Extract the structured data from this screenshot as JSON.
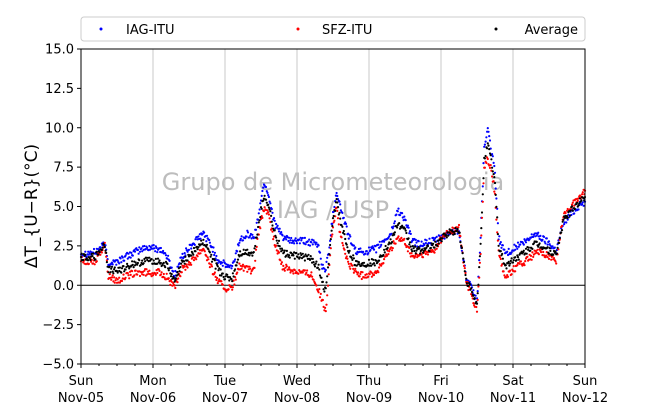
{
  "chart_data": {
    "type": "scatter",
    "title": "",
    "xlabel": "",
    "ylabel": "ΔT_{U−R}(°C)",
    "ylim": [
      -5.0,
      15.0
    ],
    "xlim": [
      0,
      7
    ],
    "yticks": [
      -5.0,
      -2.5,
      0.0,
      2.5,
      5.0,
      7.5,
      10.0,
      12.5,
      15.0
    ],
    "ytick_labels": [
      "−5.0",
      "−2.5",
      "0.0",
      "2.5",
      "5.0",
      "7.5",
      "10.0",
      "12.5",
      "15.0"
    ],
    "xticks": [
      {
        "day": "Sun",
        "date": "Nov-05",
        "x": 0
      },
      {
        "day": "Mon",
        "date": "Nov-06",
        "x": 1
      },
      {
        "day": "Tue",
        "date": "Nov-07",
        "x": 2
      },
      {
        "day": "Wed",
        "date": "Nov-08",
        "x": 3
      },
      {
        "day": "Thu",
        "date": "Nov-09",
        "x": 4
      },
      {
        "day": "Fri",
        "date": "Nov-10",
        "x": 5
      },
      {
        "day": "Sat",
        "date": "Nov-11",
        "x": 6
      },
      {
        "day": "Sun",
        "date": "Nov-12",
        "x": 7
      }
    ],
    "grid": "vertical",
    "zero_line": true,
    "legend_position": "top",
    "watermark": [
      "Grupo de Micrometeorologia",
      "IAG / USP"
    ],
    "series": [
      {
        "name": "IAG-ITU",
        "color": "#0000ff",
        "points": [
          [
            0,
            2.0
          ],
          [
            0.2,
            2.1
          ],
          [
            0.33,
            2.6
          ],
          [
            0.38,
            1.4
          ],
          [
            0.5,
            1.5
          ],
          [
            0.7,
            2.0
          ],
          [
            0.85,
            2.3
          ],
          [
            0.95,
            2.4
          ],
          [
            1.1,
            2.3
          ],
          [
            1.2,
            1.8
          ],
          [
            1.3,
            0.6
          ],
          [
            1.4,
            1.8
          ],
          [
            1.55,
            2.6
          ],
          [
            1.7,
            3.3
          ],
          [
            1.8,
            2.6
          ],
          [
            1.9,
            1.6
          ],
          [
            2.0,
            1.3
          ],
          [
            2.1,
            1.1
          ],
          [
            2.2,
            2.8
          ],
          [
            2.3,
            3.3
          ],
          [
            2.4,
            3.0
          ],
          [
            2.45,
            4.0
          ],
          [
            2.5,
            5.5
          ],
          [
            2.55,
            6.5
          ],
          [
            2.6,
            5.8
          ],
          [
            2.7,
            3.8
          ],
          [
            2.8,
            3.1
          ],
          [
            2.9,
            2.8
          ],
          [
            3.1,
            2.8
          ],
          [
            3.2,
            2.7
          ],
          [
            3.3,
            2.5
          ],
          [
            3.35,
            1.2
          ],
          [
            3.4,
            1.0
          ],
          [
            3.45,
            2.5
          ],
          [
            3.5,
            4.5
          ],
          [
            3.55,
            6.0
          ],
          [
            3.6,
            5.0
          ],
          [
            3.7,
            3.4
          ],
          [
            3.8,
            2.2
          ],
          [
            3.9,
            2.1
          ],
          [
            4.1,
            2.3
          ],
          [
            4.2,
            2.8
          ],
          [
            4.3,
            3.2
          ],
          [
            4.4,
            4.8
          ],
          [
            4.5,
            4.2
          ],
          [
            4.6,
            2.8
          ],
          [
            4.7,
            2.6
          ],
          [
            4.8,
            2.7
          ],
          [
            4.9,
            2.8
          ],
          [
            5.0,
            3.0
          ],
          [
            5.1,
            3.3
          ],
          [
            5.25,
            3.5
          ],
          [
            5.35,
            0.5
          ],
          [
            5.45,
            -0.5
          ],
          [
            5.5,
            -1.0
          ],
          [
            5.55,
            3.0
          ],
          [
            5.6,
            8.8
          ],
          [
            5.65,
            9.8
          ],
          [
            5.7,
            8.5
          ],
          [
            5.75,
            7.2
          ],
          [
            5.8,
            3.0
          ],
          [
            5.9,
            2.0
          ],
          [
            6.0,
            2.3
          ],
          [
            6.1,
            2.6
          ],
          [
            6.2,
            2.8
          ],
          [
            6.3,
            3.3
          ],
          [
            6.4,
            3.0
          ],
          [
            6.5,
            2.7
          ],
          [
            6.6,
            2.2
          ],
          [
            6.7,
            4.0
          ],
          [
            6.8,
            4.5
          ],
          [
            6.9,
            5.0
          ],
          [
            7.0,
            5.3
          ]
        ]
      },
      {
        "name": "SFZ-ITU",
        "color": "#ff0000",
        "points": [
          [
            0,
            1.6
          ],
          [
            0.2,
            1.5
          ],
          [
            0.33,
            2.6
          ],
          [
            0.38,
            0.6
          ],
          [
            0.5,
            0.3
          ],
          [
            0.7,
            0.7
          ],
          [
            0.85,
            0.8
          ],
          [
            0.95,
            0.8
          ],
          [
            1.1,
            0.8
          ],
          [
            1.2,
            0.5
          ],
          [
            1.3,
            -0.2
          ],
          [
            1.4,
            1.0
          ],
          [
            1.55,
            1.6
          ],
          [
            1.7,
            2.4
          ],
          [
            1.8,
            1.2
          ],
          [
            1.9,
            0.3
          ],
          [
            2.0,
            -0.2
          ],
          [
            2.1,
            -0.2
          ],
          [
            2.2,
            1.2
          ],
          [
            2.3,
            1.0
          ],
          [
            2.4,
            0.9
          ],
          [
            2.45,
            2.8
          ],
          [
            2.5,
            4.0
          ],
          [
            2.55,
            5.0
          ],
          [
            2.6,
            4.5
          ],
          [
            2.7,
            2.5
          ],
          [
            2.8,
            1.2
          ],
          [
            2.9,
            1.0
          ],
          [
            3.1,
            0.8
          ],
          [
            3.2,
            0.7
          ],
          [
            3.3,
            -0.3
          ],
          [
            3.35,
            -1.0
          ],
          [
            3.4,
            -1.8
          ],
          [
            3.45,
            1.5
          ],
          [
            3.5,
            3.8
          ],
          [
            3.55,
            5.0
          ],
          [
            3.6,
            3.2
          ],
          [
            3.7,
            1.5
          ],
          [
            3.8,
            0.9
          ],
          [
            3.9,
            0.6
          ],
          [
            4.1,
            0.8
          ],
          [
            4.2,
            1.5
          ],
          [
            4.3,
            2.3
          ],
          [
            4.4,
            3.0
          ],
          [
            4.5,
            2.7
          ],
          [
            4.6,
            1.8
          ],
          [
            4.7,
            1.9
          ],
          [
            4.8,
            2.0
          ],
          [
            4.9,
            2.2
          ],
          [
            5.0,
            2.9
          ],
          [
            5.1,
            3.4
          ],
          [
            5.25,
            3.6
          ],
          [
            5.35,
            0.3
          ],
          [
            5.45,
            -1.0
          ],
          [
            5.5,
            -1.6
          ],
          [
            5.55,
            2.0
          ],
          [
            5.6,
            7.5
          ],
          [
            5.65,
            8.0
          ],
          [
            5.7,
            7.3
          ],
          [
            5.75,
            5.8
          ],
          [
            5.8,
            2.0
          ],
          [
            5.9,
            0.5
          ],
          [
            6.0,
            1.0
          ],
          [
            6.1,
            1.3
          ],
          [
            6.2,
            1.6
          ],
          [
            6.3,
            2.0
          ],
          [
            6.4,
            2.1
          ],
          [
            6.5,
            1.8
          ],
          [
            6.6,
            1.6
          ],
          [
            6.7,
            4.3
          ],
          [
            6.8,
            5.0
          ],
          [
            6.9,
            5.5
          ],
          [
            7.0,
            6.0
          ]
        ]
      },
      {
        "name": "Average",
        "color": "#000000",
        "points": [
          [
            0,
            1.8
          ],
          [
            0.2,
            1.8
          ],
          [
            0.33,
            2.6
          ],
          [
            0.38,
            1.0
          ],
          [
            0.5,
            0.9
          ],
          [
            0.7,
            1.3
          ],
          [
            0.85,
            1.5
          ],
          [
            0.95,
            1.6
          ],
          [
            1.1,
            1.5
          ],
          [
            1.2,
            1.2
          ],
          [
            1.3,
            0.2
          ],
          [
            1.4,
            1.4
          ],
          [
            1.55,
            2.1
          ],
          [
            1.7,
            2.8
          ],
          [
            1.8,
            1.9
          ],
          [
            1.9,
            1.0
          ],
          [
            2.0,
            0.5
          ],
          [
            2.1,
            0.4
          ],
          [
            2.2,
            2.0
          ],
          [
            2.3,
            2.1
          ],
          [
            2.4,
            2.0
          ],
          [
            2.45,
            3.4
          ],
          [
            2.5,
            4.8
          ],
          [
            2.55,
            5.7
          ],
          [
            2.6,
            5.2
          ],
          [
            2.7,
            3.1
          ],
          [
            2.8,
            2.1
          ],
          [
            2.9,
            1.9
          ],
          [
            3.1,
            1.8
          ],
          [
            3.2,
            1.7
          ],
          [
            3.3,
            1.1
          ],
          [
            3.35,
            0.1
          ],
          [
            3.4,
            -0.4
          ],
          [
            3.45,
            2.0
          ],
          [
            3.5,
            4.1
          ],
          [
            3.55,
            5.5
          ],
          [
            3.6,
            4.1
          ],
          [
            3.7,
            2.4
          ],
          [
            3.8,
            1.5
          ],
          [
            3.9,
            1.3
          ],
          [
            4.1,
            1.5
          ],
          [
            4.2,
            2.1
          ],
          [
            4.3,
            2.7
          ],
          [
            4.4,
            3.9
          ],
          [
            4.5,
            3.4
          ],
          [
            4.6,
            2.3
          ],
          [
            4.7,
            2.2
          ],
          [
            4.8,
            2.3
          ],
          [
            4.9,
            2.5
          ],
          [
            5.0,
            2.9
          ],
          [
            5.1,
            3.3
          ],
          [
            5.25,
            3.5
          ],
          [
            5.35,
            0.4
          ],
          [
            5.45,
            -0.7
          ],
          [
            5.5,
            -1.3
          ],
          [
            5.55,
            2.5
          ],
          [
            5.6,
            8.1
          ],
          [
            5.65,
            8.9
          ],
          [
            5.7,
            7.9
          ],
          [
            5.75,
            6.5
          ],
          [
            5.8,
            2.5
          ],
          [
            5.9,
            1.2
          ],
          [
            6.0,
            1.6
          ],
          [
            6.1,
            1.9
          ],
          [
            6.2,
            2.2
          ],
          [
            6.3,
            2.6
          ],
          [
            6.4,
            2.5
          ],
          [
            6.5,
            2.2
          ],
          [
            6.6,
            1.9
          ],
          [
            6.7,
            4.1
          ],
          [
            6.8,
            4.7
          ],
          [
            6.9,
            5.2
          ],
          [
            7.0,
            5.6
          ]
        ]
      }
    ]
  }
}
